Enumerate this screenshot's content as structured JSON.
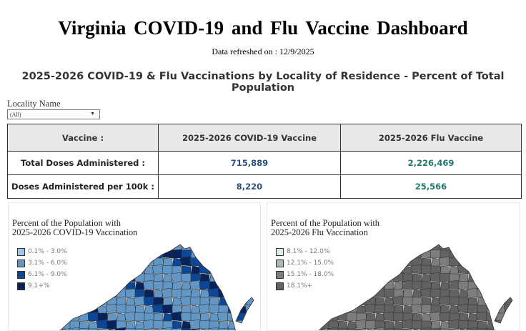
{
  "header": {
    "title": "Virginia COVID-19 and Flu Vaccine Dashboard",
    "refreshed": "Data refreshed on : 12/9/2025",
    "subtitle": "2025-2026 COVID-19 & Flu Vaccinations by Locality of Residence - Percent of Total Population"
  },
  "filter": {
    "label": "Locality Name",
    "value": "(All)",
    "icon": "dropdown-arrow-icon"
  },
  "table": {
    "headers": [
      "Vaccine :",
      "2025-2026 COVID-19 Vaccine",
      "2025-2026 Flu Vaccine"
    ],
    "rows": [
      {
        "label": "Total Doses Administered :",
        "covid": "715,889",
        "flu": "2,226,469"
      },
      {
        "label": "Doses Administered per 100k :",
        "covid": "8,220",
        "flu": "25,566"
      }
    ]
  },
  "maps": [
    {
      "title_line1": "Percent of the Population with",
      "title_line2": "2025-2026 COVID-19 Vaccination",
      "legend": [
        {
          "label": "0.1% - 3.0%",
          "color": "#9ec5e8"
        },
        {
          "label": "3.1% - 6.0%",
          "color": "#6296c4"
        },
        {
          "label": "6.1% - 9.0%",
          "color": "#0b4796"
        },
        {
          "label": "9.1+%",
          "color": "#08225c"
        }
      ]
    },
    {
      "title_line1": "Percent of the Population with",
      "title_line2": "2025-2026 Flu Vaccination",
      "legend": [
        {
          "label": "8.1% - 12.0%",
          "color": "#d8ede8"
        },
        {
          "label": "12.1% - 15.0%",
          "color": "#aab8b5"
        },
        {
          "label": "15.1% - 18.0%",
          "color": "#7d7d7d"
        },
        {
          "label": "18.1%+",
          "color": "#626262"
        }
      ]
    }
  ]
}
